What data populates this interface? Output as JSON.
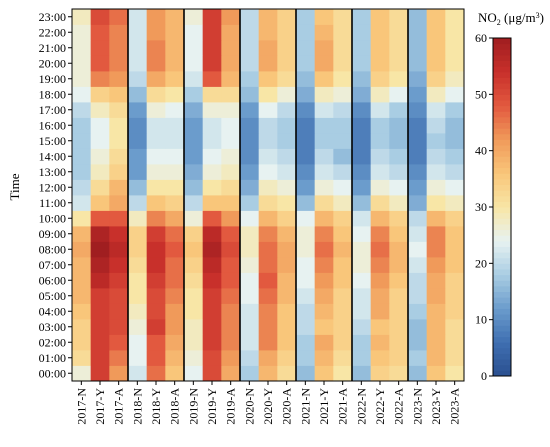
{
  "chart_data": {
    "type": "heatmap",
    "ylabel": "Time",
    "colorbar": {
      "label_main": "NO",
      "label_sub": "2",
      "label_units": " (μg/m",
      "label_sup": "3",
      "label_close": ")",
      "min": 0,
      "max": 60,
      "ticks": [
        0,
        10,
        20,
        30,
        40,
        50,
        60
      ],
      "colors": [
        "#2a4f8f",
        "#3f6fb1",
        "#6b9ccc",
        "#a9cde3",
        "#e7f2f1",
        "#f8e6a6",
        "#f9c67a",
        "#f09a5a",
        "#e2593f",
        "#c8302b",
        "#a01e20"
      ]
    },
    "categories": [
      "2017-N",
      "2017-Y",
      "2017-A",
      "2018-N",
      "2018-Y",
      "2018-A",
      "2019-N",
      "2019-Y",
      "2019-A",
      "2020-N",
      "2020-Y",
      "2020-A",
      "2021-N",
      "2021-Y",
      "2021-A",
      "2022-N",
      "2022-Y",
      "2022-A",
      "2023-N",
      "2023-Y",
      "2023-A"
    ],
    "hours": [
      "00:00",
      "01:00",
      "02:00",
      "03:00",
      "04:00",
      "05:00",
      "06:00",
      "07:00",
      "08:00",
      "09:00",
      "10:00",
      "11:00",
      "12:00",
      "13:00",
      "14:00",
      "15:00",
      "16:00",
      "17:00",
      "18:00",
      "19:00",
      "20:00",
      "21:00",
      "22:00",
      "23:00"
    ],
    "group_size": 3,
    "values": [
      [
        26,
        52,
        42,
        22,
        46,
        36,
        24,
        50,
        40,
        18,
        38,
        32,
        16,
        36,
        30,
        16,
        34,
        32,
        16,
        36,
        30
      ],
      [
        32,
        52,
        45,
        24,
        48,
        38,
        26,
        50,
        42,
        20,
        40,
        34,
        18,
        38,
        32,
        18,
        36,
        34,
        18,
        38,
        32
      ],
      [
        34,
        52,
        48,
        24,
        48,
        40,
        28,
        52,
        44,
        22,
        44,
        36,
        18,
        40,
        34,
        18,
        38,
        34,
        16,
        38,
        32
      ],
      [
        34,
        52,
        50,
        26,
        52,
        42,
        28,
        52,
        44,
        22,
        44,
        36,
        20,
        36,
        34,
        20,
        36,
        34,
        16,
        38,
        32
      ],
      [
        36,
        52,
        50,
        28,
        50,
        42,
        30,
        52,
        44,
        22,
        44,
        36,
        20,
        38,
        34,
        22,
        40,
        34,
        18,
        38,
        34
      ],
      [
        38,
        52,
        50,
        30,
        50,
        44,
        30,
        52,
        46,
        24,
        46,
        38,
        22,
        40,
        34,
        22,
        40,
        34,
        20,
        40,
        34
      ],
      [
        38,
        56,
        52,
        30,
        52,
        46,
        32,
        54,
        48,
        24,
        48,
        38,
        24,
        42,
        36,
        24,
        42,
        36,
        20,
        40,
        34
      ],
      [
        38,
        58,
        54,
        32,
        54,
        46,
        34,
        56,
        48,
        26,
        46,
        40,
        24,
        44,
        36,
        26,
        44,
        38,
        22,
        42,
        36
      ],
      [
        40,
        60,
        56,
        34,
        54,
        48,
        36,
        58,
        50,
        28,
        46,
        40,
        26,
        46,
        38,
        26,
        46,
        38,
        24,
        44,
        36
      ],
      [
        38,
        58,
        54,
        34,
        52,
        46,
        34,
        56,
        48,
        28,
        44,
        38,
        26,
        44,
        36,
        24,
        44,
        36,
        22,
        44,
        36
      ],
      [
        30,
        48,
        48,
        28,
        44,
        40,
        26,
        48,
        42,
        24,
        38,
        34,
        24,
        38,
        34,
        22,
        38,
        34,
        20,
        38,
        34
      ],
      [
        22,
        36,
        40,
        20,
        36,
        34,
        20,
        36,
        36,
        18,
        32,
        30,
        16,
        32,
        28,
        16,
        32,
        28,
        14,
        30,
        28
      ],
      [
        20,
        32,
        38,
        16,
        30,
        30,
        16,
        30,
        32,
        14,
        28,
        26,
        12,
        26,
        24,
        12,
        26,
        24,
        12,
        26,
        24
      ],
      [
        18,
        28,
        34,
        12,
        26,
        26,
        14,
        26,
        28,
        12,
        24,
        22,
        10,
        22,
        20,
        10,
        22,
        20,
        10,
        22,
        20
      ],
      [
        18,
        26,
        32,
        12,
        24,
        24,
        12,
        24,
        26,
        10,
        22,
        20,
        8,
        20,
        16,
        8,
        20,
        18,
        8,
        20,
        18
      ],
      [
        18,
        24,
        30,
        10,
        22,
        22,
        12,
        22,
        24,
        10,
        20,
        18,
        8,
        18,
        18,
        8,
        18,
        16,
        8,
        18,
        16
      ],
      [
        18,
        24,
        30,
        10,
        22,
        22,
        12,
        22,
        24,
        10,
        20,
        18,
        8,
        18,
        18,
        8,
        18,
        16,
        8,
        20,
        16
      ],
      [
        20,
        28,
        32,
        12,
        26,
        24,
        14,
        26,
        26,
        12,
        24,
        20,
        10,
        22,
        20,
        10,
        22,
        18,
        10,
        22,
        18
      ],
      [
        24,
        34,
        36,
        16,
        32,
        30,
        18,
        32,
        32,
        16,
        30,
        26,
        14,
        28,
        26,
        14,
        28,
        24,
        12,
        28,
        24
      ],
      [
        26,
        44,
        42,
        20,
        40,
        36,
        22,
        48,
        38,
        18,
        36,
        32,
        16,
        36,
        30,
        16,
        34,
        30,
        14,
        34,
        28
      ],
      [
        26,
        48,
        44,
        22,
        44,
        38,
        24,
        52,
        40,
        20,
        40,
        34,
        18,
        40,
        32,
        18,
        36,
        32,
        16,
        36,
        30
      ],
      [
        26,
        48,
        44,
        22,
        44,
        38,
        24,
        52,
        40,
        20,
        40,
        34,
        18,
        40,
        32,
        18,
        36,
        32,
        16,
        36,
        30
      ],
      [
        26,
        48,
        44,
        22,
        42,
        38,
        24,
        52,
        40,
        20,
        38,
        34,
        18,
        38,
        32,
        18,
        36,
        32,
        16,
        36,
        30
      ],
      [
        28,
        50,
        46,
        22,
        42,
        38,
        26,
        52,
        42,
        20,
        38,
        34,
        18,
        36,
        32,
        18,
        36,
        32,
        16,
        36,
        30
      ]
    ]
  }
}
